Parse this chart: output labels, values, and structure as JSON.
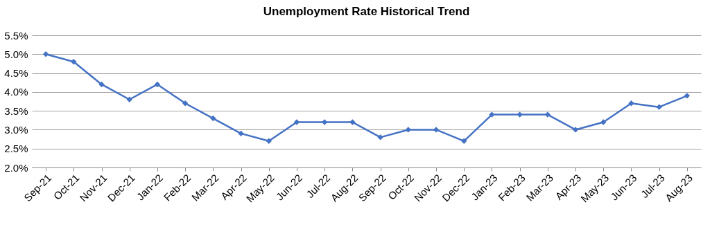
{
  "chart_data": {
    "type": "line",
    "title": "Unemployment Rate Historical Trend",
    "categories": [
      "Sep-21",
      "Oct-21",
      "Nov-21",
      "Dec-21",
      "Jan-22",
      "Feb-22",
      "Mar-22",
      "Apr-22",
      "May-22",
      "Jun-22",
      "Jul-22",
      "Aug-22",
      "Sep-22",
      "Oct-22",
      "Nov-22",
      "Dec-22",
      "Jan-23",
      "Feb-23",
      "Mar-23",
      "Apr-23",
      "May-23",
      "Jun-23",
      "Jul-23",
      "Aug-23"
    ],
    "series": [
      {
        "color": "#4472c4",
        "values": [
          5.0,
          4.8,
          4.2,
          3.8,
          4.2,
          3.7,
          3.3,
          2.9,
          2.7,
          3.2,
          3.2,
          3.2,
          2.8,
          3.0,
          3.0,
          2.7,
          3.4,
          3.4,
          3.4,
          3.0,
          3.2,
          3.7,
          3.6,
          3.9
        ]
      }
    ],
    "ylim": [
      2.0,
      5.5
    ],
    "yticks": [
      {
        "value": 2.0,
        "label": "2.0%"
      },
      {
        "value": 2.5,
        "label": "2.5%"
      },
      {
        "value": 3.0,
        "label": "3.0%"
      },
      {
        "value": 3.5,
        "label": "3.5%"
      },
      {
        "value": 4.0,
        "label": "4.0%"
      },
      {
        "value": 4.5,
        "label": "4.5%"
      },
      {
        "value": 5.0,
        "label": "5.0%"
      },
      {
        "value": 5.5,
        "label": "5.5%"
      }
    ],
    "grid": "y",
    "marker": "diamond",
    "line_style": "solid"
  }
}
